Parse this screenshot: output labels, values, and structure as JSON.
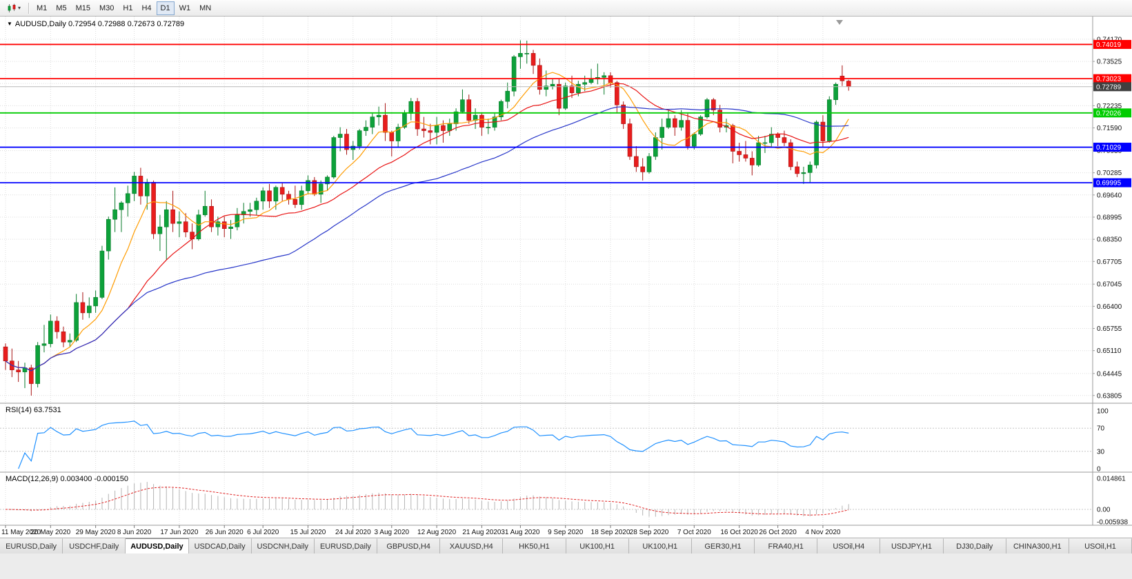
{
  "toolbar": {
    "timeframes": [
      "M1",
      "M5",
      "M15",
      "M30",
      "H1",
      "H4",
      "D1",
      "W1",
      "MN"
    ],
    "active_timeframe": "D1"
  },
  "icons": {
    "dropdown_arrow": "▾",
    "chart_menu": "▼"
  },
  "chart": {
    "title": "AUDUSD,Daily",
    "ohlc": "0.72954 0.72988 0.72673 0.72789",
    "rsi_label": "RSI(14) 63.7531",
    "macd_label": "MACD(12,26,9) 0.003400 -0.000150"
  },
  "chart_data": {
    "type": "candlestick",
    "symbol": "AUDUSD",
    "period": "Daily",
    "ohlc_display": {
      "open": "0.72954",
      "high": "0.72988",
      "low": "0.72673",
      "close": "0.72789"
    },
    "price_axis": {
      "labels": [
        "0.74170",
        "0.73525",
        "0.72880",
        "0.72235",
        "0.71590",
        "0.70930",
        "0.70285",
        "0.69640",
        "0.68995",
        "0.68350",
        "0.67705",
        "0.67045",
        "0.66400",
        "0.65755",
        "0.65110",
        "0.64445",
        "0.63805"
      ],
      "top_price": 0.7475,
      "bottom_price": 0.6362
    },
    "date_ticks": [
      {
        "index": 0,
        "label": "11 May 2020"
      },
      {
        "index": 7,
        "label": "20 May 2020"
      },
      {
        "index": 14,
        "label": "29 May 2020"
      },
      {
        "index": 20,
        "label": "8 Jun 2020"
      },
      {
        "index": 27,
        "label": "17 Jun 2020"
      },
      {
        "index": 34,
        "label": "26 Jun 2020"
      },
      {
        "index": 40,
        "label": "6 Jul 2020"
      },
      {
        "index": 47,
        "label": "15 Jul 2020"
      },
      {
        "index": 54,
        "label": "24 Jul 2020"
      },
      {
        "index": 60,
        "label": "3 Aug 2020"
      },
      {
        "index": 67,
        "label": "12 Aug 2020"
      },
      {
        "index": 74,
        "label": "21 Aug 2020"
      },
      {
        "index": 80,
        "label": "31 Aug 2020"
      },
      {
        "index": 87,
        "label": "9 Sep 2020"
      },
      {
        "index": 94,
        "label": "18 Sep 2020"
      },
      {
        "index": 100,
        "label": "28 Sep 2020"
      },
      {
        "index": 107,
        "label": "7 Oct 2020"
      },
      {
        "index": 114,
        "label": "16 Oct 2020"
      },
      {
        "index": 120,
        "label": "26 Oct 2020"
      },
      {
        "index": 127,
        "label": "4 Nov 2020"
      }
    ],
    "candles": [
      [
        0.6522,
        0.6532,
        0.6455,
        0.6481
      ],
      [
        0.6481,
        0.6517,
        0.6434,
        0.6455
      ],
      [
        0.6455,
        0.6481,
        0.642,
        0.6449
      ],
      [
        0.6449,
        0.6476,
        0.6402,
        0.6461
      ],
      [
        0.6461,
        0.647,
        0.638,
        0.6415
      ],
      [
        0.6415,
        0.6536,
        0.6404,
        0.6526
      ],
      [
        0.6526,
        0.6586,
        0.6506,
        0.6531
      ],
      [
        0.6531,
        0.6616,
        0.6521,
        0.6597
      ],
      [
        0.6597,
        0.6611,
        0.6546,
        0.6566
      ],
      [
        0.6566,
        0.6581,
        0.6521,
        0.6536
      ],
      [
        0.6536,
        0.6561,
        0.6521,
        0.6541
      ],
      [
        0.6541,
        0.6676,
        0.6536,
        0.6651
      ],
      [
        0.6651,
        0.6681,
        0.6601,
        0.6621
      ],
      [
        0.6621,
        0.6666,
        0.6606,
        0.6641
      ],
      [
        0.6641,
        0.6686,
        0.6621,
        0.6666
      ],
      [
        0.6666,
        0.6816,
        0.6661,
        0.6801
      ],
      [
        0.6801,
        0.6901,
        0.6776,
        0.6893
      ],
      [
        0.6893,
        0.6986,
        0.6856,
        0.6921
      ],
      [
        0.6921,
        0.6946,
        0.6856,
        0.6941
      ],
      [
        0.6941,
        0.6991,
        0.6901,
        0.6968
      ],
      [
        0.6968,
        0.7031,
        0.6946,
        0.7019
      ],
      [
        0.7019,
        0.7043,
        0.6936,
        0.6961
      ],
      [
        0.6961,
        0.7011,
        0.6921,
        0.7001
      ],
      [
        0.7001,
        0.7006,
        0.6836,
        0.6851
      ],
      [
        0.6851,
        0.6906,
        0.6801,
        0.6871
      ],
      [
        0.6871,
        0.6946,
        0.6776,
        0.6921
      ],
      [
        0.6921,
        0.6976,
        0.6856,
        0.6881
      ],
      [
        0.6881,
        0.6916,
        0.6841,
        0.6886
      ],
      [
        0.6886,
        0.6911,
        0.6841,
        0.6856
      ],
      [
        0.6856,
        0.6881,
        0.6806,
        0.6836
      ],
      [
        0.6836,
        0.6921,
        0.6831,
        0.6906
      ],
      [
        0.6906,
        0.6976,
        0.6901,
        0.6931
      ],
      [
        0.6931,
        0.6951,
        0.6856,
        0.6871
      ],
      [
        0.6871,
        0.6901,
        0.6846,
        0.6886
      ],
      [
        0.6886,
        0.6901,
        0.6841,
        0.6866
      ],
      [
        0.6866,
        0.6891,
        0.6836,
        0.6871
      ],
      [
        0.6871,
        0.6926,
        0.6861,
        0.6906
      ],
      [
        0.6906,
        0.6941,
        0.6881,
        0.6916
      ],
      [
        0.6916,
        0.6941,
        0.6901,
        0.6921
      ],
      [
        0.6921,
        0.6956,
        0.6906,
        0.6946
      ],
      [
        0.6946,
        0.6986,
        0.6921,
        0.6976
      ],
      [
        0.6976,
        0.6996,
        0.6926,
        0.6946
      ],
      [
        0.6946,
        0.6991,
        0.6921,
        0.6986
      ],
      [
        0.6986,
        0.7001,
        0.6946,
        0.6966
      ],
      [
        0.6966,
        0.6976,
        0.6936,
        0.6951
      ],
      [
        0.6951,
        0.6991,
        0.6926,
        0.6936
      ],
      [
        0.6936,
        0.6991,
        0.6921,
        0.6976
      ],
      [
        0.6976,
        0.7021,
        0.6966,
        0.7006
      ],
      [
        0.7006,
        0.7016,
        0.6961,
        0.6966
      ],
      [
        0.6966,
        0.7006,
        0.6941,
        0.6996
      ],
      [
        0.6996,
        0.7021,
        0.6976,
        0.7016
      ],
      [
        0.7016,
        0.7136,
        0.7011,
        0.7131
      ],
      [
        0.7131,
        0.7161,
        0.7091,
        0.7141
      ],
      [
        0.7141,
        0.7156,
        0.7081,
        0.7096
      ],
      [
        0.7096,
        0.7121,
        0.7066,
        0.7106
      ],
      [
        0.7106,
        0.7156,
        0.7096,
        0.7151
      ],
      [
        0.7151,
        0.7181,
        0.7136,
        0.7161
      ],
      [
        0.7161,
        0.7201,
        0.7141,
        0.7191
      ],
      [
        0.7191,
        0.7221,
        0.7166,
        0.7196
      ],
      [
        0.7196,
        0.7231,
        0.7121,
        0.7146
      ],
      [
        0.7146,
        0.7151,
        0.7076,
        0.7121
      ],
      [
        0.7121,
        0.7171,
        0.7101,
        0.7161
      ],
      [
        0.7161,
        0.7211,
        0.7156,
        0.7201
      ],
      [
        0.7201,
        0.7246,
        0.7181,
        0.7236
      ],
      [
        0.7236,
        0.7246,
        0.7136,
        0.7156
      ],
      [
        0.7156,
        0.7191,
        0.7131,
        0.7151
      ],
      [
        0.7151,
        0.7171,
        0.7111,
        0.7146
      ],
      [
        0.7146,
        0.7191,
        0.7111,
        0.7166
      ],
      [
        0.7166,
        0.7181,
        0.7116,
        0.7151
      ],
      [
        0.7151,
        0.7186,
        0.7136,
        0.7171
      ],
      [
        0.7171,
        0.7216,
        0.7151,
        0.7206
      ],
      [
        0.7206,
        0.7271,
        0.7201,
        0.7241
      ],
      [
        0.7241,
        0.7256,
        0.7171,
        0.7181
      ],
      [
        0.7181,
        0.7216,
        0.7156,
        0.7196
      ],
      [
        0.7196,
        0.7201,
        0.7136,
        0.7161
      ],
      [
        0.7161,
        0.7186,
        0.7141,
        0.7161
      ],
      [
        0.7161,
        0.7201,
        0.7151,
        0.7191
      ],
      [
        0.7191,
        0.7241,
        0.7181,
        0.7236
      ],
      [
        0.7236,
        0.7291,
        0.7216,
        0.7266
      ],
      [
        0.7266,
        0.7371,
        0.7251,
        0.7366
      ],
      [
        0.7366,
        0.7414,
        0.7331,
        0.7376
      ],
      [
        0.7376,
        0.7413,
        0.7346,
        0.7376
      ],
      [
        0.7376,
        0.7386,
        0.7316,
        0.7341
      ],
      [
        0.7341,
        0.7361,
        0.7256,
        0.7271
      ],
      [
        0.7271,
        0.7326,
        0.7251,
        0.7281
      ],
      [
        0.7281,
        0.7301,
        0.7271,
        0.7286
      ],
      [
        0.7286,
        0.7301,
        0.7196,
        0.7216
      ],
      [
        0.7216,
        0.7291,
        0.7211,
        0.7281
      ],
      [
        0.7281,
        0.7311,
        0.7246,
        0.7261
      ],
      [
        0.7261,
        0.7296,
        0.7251,
        0.7286
      ],
      [
        0.7286,
        0.7311,
        0.7266,
        0.7291
      ],
      [
        0.7291,
        0.7331,
        0.7286,
        0.7301
      ],
      [
        0.7301,
        0.7346,
        0.7286,
        0.7306
      ],
      [
        0.7306,
        0.7321,
        0.7256,
        0.7311
      ],
      [
        0.7311,
        0.7321,
        0.7276,
        0.7291
      ],
      [
        0.7291,
        0.7296,
        0.7201,
        0.7226
      ],
      [
        0.7226,
        0.7236,
        0.7156,
        0.7171
      ],
      [
        0.7171,
        0.7186,
        0.7066,
        0.7076
      ],
      [
        0.7076,
        0.7106,
        0.7031,
        0.7046
      ],
      [
        0.7046,
        0.7071,
        0.7006,
        0.7031
      ],
      [
        0.7031,
        0.7086,
        0.7026,
        0.7076
      ],
      [
        0.7076,
        0.7146,
        0.7066,
        0.7131
      ],
      [
        0.7131,
        0.7186,
        0.7096,
        0.7161
      ],
      [
        0.7161,
        0.7211,
        0.7156,
        0.7186
      ],
      [
        0.7186,
        0.7196,
        0.7136,
        0.7161
      ],
      [
        0.7161,
        0.7211,
        0.7151,
        0.7181
      ],
      [
        0.7181,
        0.7201,
        0.7096,
        0.7106
      ],
      [
        0.7106,
        0.7146,
        0.7096,
        0.7141
      ],
      [
        0.7141,
        0.7196,
        0.7136,
        0.7191
      ],
      [
        0.7191,
        0.7246,
        0.7186,
        0.7241
      ],
      [
        0.7241,
        0.7246,
        0.7196,
        0.7211
      ],
      [
        0.7211,
        0.7226,
        0.7146,
        0.7161
      ],
      [
        0.7161,
        0.7186,
        0.7146,
        0.7166
      ],
      [
        0.7166,
        0.7171,
        0.7056,
        0.7091
      ],
      [
        0.7091,
        0.7116,
        0.7061,
        0.7081
      ],
      [
        0.7081,
        0.7121,
        0.7061,
        0.7071
      ],
      [
        0.7071,
        0.7091,
        0.7021,
        0.7051
      ],
      [
        0.7051,
        0.7136,
        0.7046,
        0.7116
      ],
      [
        0.7116,
        0.7136,
        0.7086,
        0.7116
      ],
      [
        0.7116,
        0.7161,
        0.7101,
        0.7141
      ],
      [
        0.7141,
        0.7146,
        0.7106,
        0.7131
      ],
      [
        0.7131,
        0.7151,
        0.7106,
        0.7116
      ],
      [
        0.7116,
        0.7126,
        0.7036,
        0.7046
      ],
      [
        0.7046,
        0.7061,
        0.7016,
        0.7026
      ],
      [
        0.7026,
        0.7046,
        0.6996,
        0.7029
      ],
      [
        0.7029,
        0.7061,
        0.7001,
        0.7051
      ],
      [
        0.7051,
        0.7181,
        0.7041,
        0.7176
      ],
      [
        0.7176,
        0.7196,
        0.7101,
        0.7121
      ],
      [
        0.7121,
        0.7251,
        0.7116,
        0.7241
      ],
      [
        0.7241,
        0.7291,
        0.7226,
        0.7286
      ],
      [
        0.731,
        0.7341,
        0.7281,
        0.7296
      ],
      [
        0.72954,
        0.72988,
        0.72673,
        0.72789
      ]
    ],
    "hlines": [
      {
        "price": 0.74019,
        "label": "0.74019",
        "color": "#ff0000"
      },
      {
        "price": 0.73023,
        "label": "0.73023",
        "color": "#ff0000"
      },
      {
        "price": 0.72026,
        "label": "0.72026",
        "color": "#00cc00"
      },
      {
        "price": 0.71029,
        "label": "0.71029",
        "color": "#0000ff"
      },
      {
        "price": 0.69995,
        "label": "0.69995",
        "color": "#0000ff"
      }
    ],
    "current_price": {
      "value": 0.72789,
      "label": "0.72789",
      "color": "#3f3f3f"
    },
    "moving_averages": [
      {
        "period": 8,
        "color": "#ff9c00",
        "name": "fast-ma"
      },
      {
        "period": 20,
        "color": "#e81010",
        "name": "medium-ma"
      },
      {
        "period": 45,
        "color": "#2433c8",
        "name": "slow-ma"
      }
    ],
    "rsi": {
      "period": 14,
      "current": "63.7531",
      "levels": [
        "100",
        "70",
        "30",
        "0"
      ],
      "color": "#1e90ff"
    },
    "macd": {
      "fast": 12,
      "slow": 26,
      "signal": 9,
      "main_value": "0.003400",
      "signal_value": "-0.000150",
      "axis_labels": [
        "0.014861",
        "0.00",
        "-0.005938"
      ],
      "v_top": 0.014861,
      "v_bottom": -0.005938,
      "hist_color": "#b4b4b4",
      "signal_color": "#e02020"
    },
    "candle_colors": {
      "up": "#0da13a",
      "down": "#e81d1d",
      "up_border": "#067a28",
      "down_border": "#a81212"
    }
  },
  "tabs": {
    "items": [
      "EURUSD,Daily",
      "USDCHF,Daily",
      "AUDUSD,Daily",
      "USDCAD,Daily",
      "USDCNH,Daily",
      "EURUSD,Daily",
      "GBPUSD,H4",
      "XAUUSD,H4",
      "HK50,H1",
      "UK100,H1",
      "UK100,H1",
      "GER30,H1",
      "FRA40,H1",
      "USOil,H4",
      "USDJPY,H1",
      "DJ30,Daily",
      "CHINA300,H1",
      "USOil,H1"
    ],
    "active_index": 2
  }
}
